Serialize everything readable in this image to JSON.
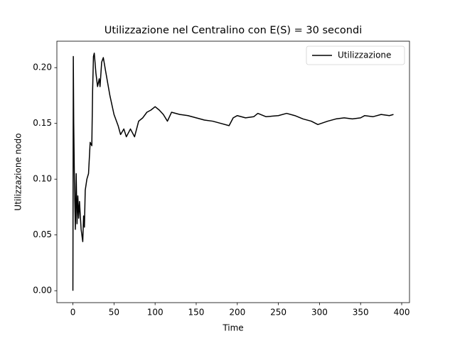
{
  "chart_data": {
    "type": "line",
    "title": "Utilizzazione nel Centralino con E(S) = 30 secondi",
    "xlabel": "Time",
    "ylabel": "Utilizzazione nodo",
    "x": [
      0,
      0.5,
      1,
      2,
      3,
      4,
      5,
      6,
      7,
      8,
      10,
      12,
      13,
      14,
      15,
      17,
      19,
      21,
      23,
      24,
      25,
      26,
      28,
      30,
      32,
      33,
      35,
      37,
      40,
      45,
      50,
      55,
      58,
      62,
      65,
      70,
      75,
      80,
      85,
      90,
      95,
      100,
      105,
      110,
      115,
      120,
      130,
      140,
      150,
      160,
      170,
      180,
      190,
      195,
      200,
      210,
      220,
      225,
      235,
      250,
      260,
      270,
      280,
      290,
      298,
      310,
      320,
      330,
      340,
      350,
      355,
      365,
      375,
      385,
      390
    ],
    "series": [
      {
        "name": "Utilizzazione",
        "color": "#000000",
        "values": [
          0,
          0.21,
          0.15,
          0.09,
          0.055,
          0.105,
          0.06,
          0.085,
          0.065,
          0.08,
          0.055,
          0.044,
          0.067,
          0.057,
          0.09,
          0.1,
          0.105,
          0.133,
          0.13,
          0.18,
          0.21,
          0.213,
          0.195,
          0.183,
          0.19,
          0.183,
          0.205,
          0.209,
          0.196,
          0.175,
          0.158,
          0.148,
          0.14,
          0.145,
          0.138,
          0.145,
          0.138,
          0.152,
          0.155,
          0.16,
          0.162,
          0.165,
          0.162,
          0.158,
          0.152,
          0.16,
          0.158,
          0.157,
          0.155,
          0.153,
          0.152,
          0.15,
          0.148,
          0.155,
          0.157,
          0.155,
          0.156,
          0.159,
          0.156,
          0.157,
          0.159,
          0.157,
          0.154,
          0.152,
          0.149,
          0.152,
          0.154,
          0.155,
          0.154,
          0.155,
          0.157,
          0.156,
          0.158,
          0.157,
          0.158
        ]
      }
    ],
    "xlim": [
      -19.5,
      409.5
    ],
    "ylim": [
      -0.0107,
      0.2237
    ],
    "xticks": [
      0,
      50,
      100,
      150,
      200,
      250,
      300,
      350,
      400
    ],
    "yticks": [
      {
        "value": 0,
        "label": "0.00"
      },
      {
        "value": 0.05,
        "label": "0.05"
      },
      {
        "value": 0.1,
        "label": "0.10"
      },
      {
        "value": 0.15,
        "label": "0.15"
      },
      {
        "value": 0.2,
        "label": "0.20"
      }
    ],
    "legend": "upper right",
    "grid": false
  }
}
